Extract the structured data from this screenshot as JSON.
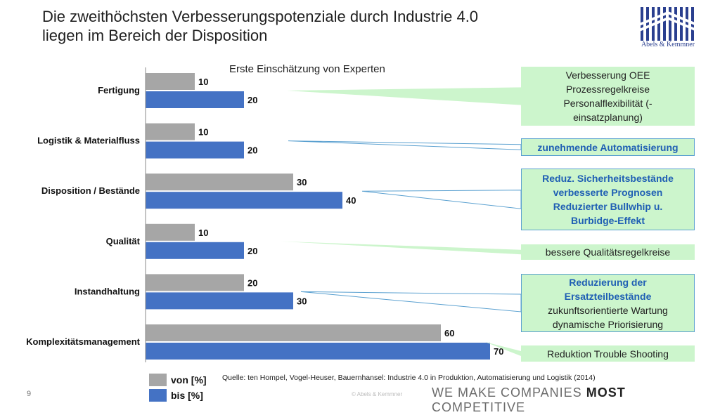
{
  "title_line1": "Die zweithöchsten Verbesserungspotenziale durch Industrie 4.0",
  "title_line2": "liegen im Bereich der Disposition",
  "logo_text": "Abels & Kemmner",
  "chart_data": {
    "type": "bar",
    "orientation": "horizontal",
    "title": "Erste Einschätzung von Experten",
    "categories": [
      "Fertigung",
      "Logistik & Materialfluss",
      "Disposition / Bestände",
      "Qualität",
      "Instandhaltung",
      "Komplexitätsmanagement"
    ],
    "series": [
      {
        "name": "von [%]",
        "color": "#a6a6a6",
        "values": [
          10,
          10,
          30,
          10,
          20,
          60
        ]
      },
      {
        "name": "bis [%]",
        "color": "#4472c4",
        "values": [
          20,
          20,
          40,
          20,
          30,
          70
        ]
      }
    ],
    "xlim": [
      0,
      70
    ],
    "grid": false,
    "legend": "bottom-left"
  },
  "callouts": [
    {
      "lines": [
        {
          "text": "Verbesserung OEE",
          "style": "plain"
        },
        {
          "text": "Prozessregelkreise",
          "style": "plain"
        },
        {
          "text": "Personalflexibilität (-",
          "style": "plain"
        },
        {
          "text": "einsatzplanung)",
          "style": "plain"
        }
      ]
    },
    {
      "lines": [
        {
          "text": "zunehmende Automatisierung",
          "style": "blue"
        }
      ]
    },
    {
      "lines": [
        {
          "text": "Reduz. Sicherheitsbestände",
          "style": "blue"
        },
        {
          "text": "verbesserte Prognosen",
          "style": "blue"
        },
        {
          "text": "Reduzierter Bullwhip u.",
          "style": "blue"
        },
        {
          "text": "Burbidge-Effekt",
          "style": "blue"
        }
      ]
    },
    {
      "lines": [
        {
          "text": "bessere Qualitätsregelkreise",
          "style": "plain"
        }
      ]
    },
    {
      "lines": [
        {
          "text": "Reduzierung der",
          "style": "blue"
        },
        {
          "text": "Ersatzteilbestände",
          "style": "blue"
        },
        {
          "text": "zukunftsorientierte Wartung",
          "style": "plain"
        },
        {
          "text": "dynamische Priorisierung",
          "style": "plain"
        }
      ]
    },
    {
      "lines": [
        {
          "text": "Reduktion Trouble Shooting",
          "style": "plain"
        }
      ]
    }
  ],
  "source": "Quelle: ten Hompel, Vogel-Heuser, Bauernhansel: Industrie 4.0 in Produktion, Automatisierung und Logistik (2014)",
  "page_number": "9",
  "copyright": "© Abels & Kemmner",
  "slogan_pre": "WE MAKE COMPANIES ",
  "slogan_bold": "MOST",
  "slogan_post": " COMPETITIVE",
  "colors": {
    "callout_bg": "#ccf5cc",
    "callout_border": "#5aa0d0",
    "callout_blue_text": "#1f5fb4"
  }
}
